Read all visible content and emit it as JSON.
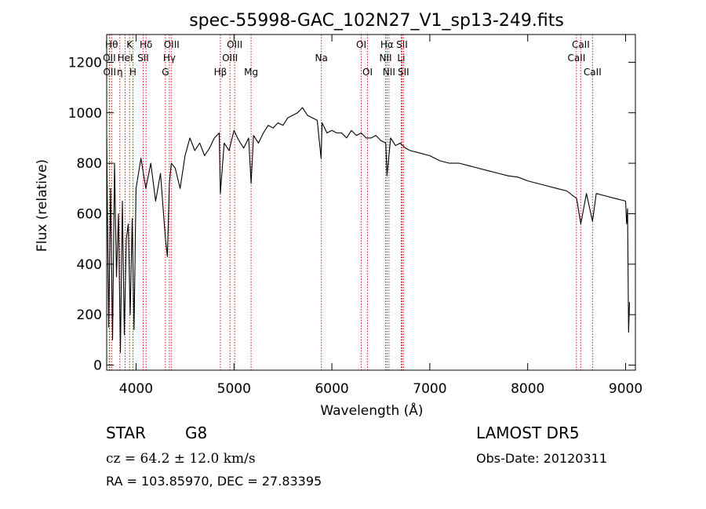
{
  "chart_data": {
    "type": "line",
    "title": "spec-55998-GAC_102N27_V1_sp13-249.fits",
    "xlabel": "Wavelength (Å)",
    "ylabel": "Flux (relative)",
    "xlim": [
      3700,
      9100
    ],
    "ylim": [
      -20,
      1310
    ],
    "xticks": [
      4000,
      5000,
      6000,
      7000,
      8000,
      9000
    ],
    "yticks": [
      0,
      200,
      400,
      600,
      800,
      1000,
      1200
    ],
    "grid": false,
    "series": [
      {
        "color": "#000000",
        "x": [
          3700,
          3720,
          3740,
          3760,
          3780,
          3800,
          3820,
          3840,
          3860,
          3880,
          3900,
          3920,
          3940,
          3960,
          3980,
          4000,
          4050,
          4100,
          4150,
          4200,
          4250,
          4300,
          4320,
          4340,
          4360,
          4400,
          4450,
          4500,
          4550,
          4600,
          4650,
          4700,
          4750,
          4800,
          4850,
          4861,
          4900,
          4950,
          5000,
          5050,
          5100,
          5150,
          5175,
          5200,
          5250,
          5300,
          5350,
          5400,
          5450,
          5500,
          5550,
          5600,
          5650,
          5700,
          5750,
          5800,
          5850,
          5890,
          5900,
          5950,
          6000,
          6050,
          6100,
          6150,
          6200,
          6250,
          6300,
          6350,
          6400,
          6450,
          6500,
          6550,
          6563,
          6600,
          6650,
          6700,
          6750,
          6800,
          6900,
          7000,
          7100,
          7200,
          7300,
          7400,
          7500,
          7600,
          7700,
          7800,
          7900,
          8000,
          8100,
          8200,
          8300,
          8400,
          8500,
          8542,
          8600,
          8662,
          8700,
          8800,
          8900,
          9000,
          9010,
          9020,
          9030,
          9040
        ],
        "y": [
          900,
          150,
          700,
          100,
          800,
          350,
          600,
          50,
          650,
          120,
          500,
          560,
          200,
          580,
          140,
          700,
          820,
          700,
          800,
          650,
          760,
          500,
          430,
          720,
          800,
          780,
          700,
          830,
          900,
          850,
          880,
          830,
          860,
          900,
          920,
          680,
          880,
          850,
          930,
          890,
          860,
          900,
          720,
          910,
          880,
          920,
          950,
          940,
          960,
          950,
          980,
          990,
          1000,
          1020,
          990,
          980,
          970,
          820,
          960,
          920,
          930,
          920,
          920,
          900,
          930,
          910,
          920,
          900,
          900,
          910,
          890,
          880,
          750,
          900,
          870,
          880,
          860,
          850,
          840,
          830,
          810,
          800,
          800,
          790,
          780,
          770,
          760,
          750,
          745,
          730,
          720,
          710,
          700,
          690,
          660,
          560,
          680,
          570,
          680,
          670,
          660,
          650,
          560,
          620,
          130,
          250
        ]
      }
    ],
    "line_markers": [
      {
        "wl": 3750,
        "label": "Hθ",
        "row": 1
      },
      {
        "wl": 3727,
        "label": "OII",
        "row": 2
      },
      {
        "wl": 3730,
        "label": "OII",
        "row": 3
      },
      {
        "wl": 3835,
        "label": "η",
        "row": 3
      },
      {
        "wl": 3889,
        "label": "HeI",
        "row": 2
      },
      {
        "wl": 3934,
        "label": "K",
        "row": 1
      },
      {
        "wl": 3968,
        "label": "H",
        "row": 3
      },
      {
        "wl": 4072,
        "label": "SII",
        "row": 2
      },
      {
        "wl": 4102,
        "label": "Hδ",
        "row": 1
      },
      {
        "wl": 4300,
        "label": "G",
        "row": 3
      },
      {
        "wl": 4340,
        "label": "Hγ",
        "row": 2
      },
      {
        "wl": 4363,
        "label": "OIII",
        "row": 1
      },
      {
        "wl": 4861,
        "label": "Hβ",
        "row": 3
      },
      {
        "wl": 4959,
        "label": "OIII",
        "row": 2
      },
      {
        "wl": 5007,
        "label": "OIII",
        "row": 1
      },
      {
        "wl": 5175,
        "label": "Mg",
        "row": 3
      },
      {
        "wl": 5893,
        "label": "Na",
        "row": 2
      },
      {
        "wl": 6300,
        "label": "OI",
        "row": 1
      },
      {
        "wl": 6364,
        "label": "OI",
        "row": 3
      },
      {
        "wl": 6548,
        "label": "NII",
        "row": 2
      },
      {
        "wl": 6563,
        "label": "Hα",
        "row": 1
      },
      {
        "wl": 6583,
        "label": "NII",
        "row": 3
      },
      {
        "wl": 6708,
        "label": "Li",
        "row": 2
      },
      {
        "wl": 6716,
        "label": "SII",
        "row": 1
      },
      {
        "wl": 6731,
        "label": "SII",
        "row": 3
      },
      {
        "wl": 8498,
        "label": "CaII",
        "row": 2
      },
      {
        "wl": 8542,
        "label": "CaII",
        "row": 1
      },
      {
        "wl": 8662,
        "label": "CaII",
        "row": 3
      }
    ]
  },
  "info": {
    "object_class": "STAR",
    "subclass": "G8",
    "survey": "LAMOST DR5",
    "velocity": "cz = 64.2 ± 12.0 km/s",
    "obs_date": "Obs-Date: 20120311",
    "coords": "RA = 103.85970, DEC =  27.83395"
  }
}
